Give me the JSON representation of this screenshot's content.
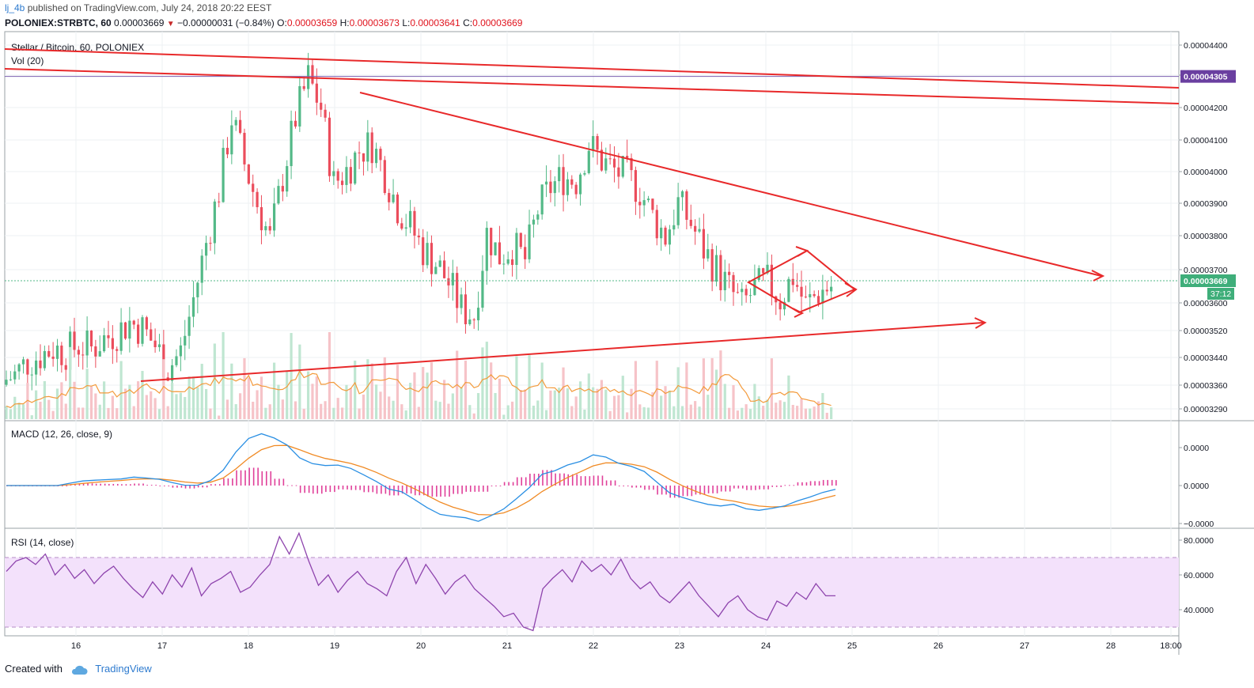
{
  "header": {
    "publisher": "lj_4b",
    "published_text": "published on TradingView.com, July 24, 2018 20:22 EEST",
    "symbol": "POLONIEX:STRBTC, 60",
    "last": "0.00003669",
    "change": "−0.00000031 (−0.84%)",
    "o_label": "O:",
    "o": "0.00003659",
    "h_label": "H:",
    "h": "0.00003673",
    "l_label": "L:",
    "l": "0.00003641",
    "c_label": "C:",
    "c": "0.00003669"
  },
  "footer": {
    "created_with": "Created with",
    "brand": "TradingView"
  },
  "chart_data": [
    {
      "type": "candlestick",
      "title": "Stellar / Bitcoin, 60, POLONIEX",
      "x_ticks": [
        "16",
        "17",
        "18",
        "19",
        "20",
        "21",
        "22",
        "23",
        "24",
        "25",
        "26",
        "27",
        "28",
        "18:00"
      ],
      "y_ticks": [
        "0.00004400",
        "0.00004300",
        "0.00004200",
        "0.00004100",
        "0.00004000",
        "0.00003900",
        "0.00003800",
        "0.00003700",
        "0.00003600",
        "0.00003520",
        "0.00003440",
        "0.00003360",
        "0.00003290"
      ],
      "ylim": [
        3.25e-05,
        4.45e-05
      ],
      "last_price_label": "0.00003669",
      "countdown_label": "37:12",
      "line_price_label": "0.00004305",
      "line_price": 4.305e-05,
      "close_series": [
        3.38e-05,
        3.4e-05,
        3.44e-05,
        3.46e-05,
        3.48e-05,
        3.47e-05,
        3.49e-05,
        3.48e-05,
        3.51e-05,
        3.53e-05,
        3.56e-05,
        3.54e-05,
        3.49e-05,
        3.42e-05,
        3.47e-05,
        3.63e-05,
        3.8e-05,
        3.96e-05,
        4.18e-05,
        4.04e-05,
        3.92e-05,
        3.81e-05,
        4e-05,
        4.18e-05,
        4.3e-05,
        4.21e-05,
        3.98e-05,
        4.02e-05,
        4.08e-05,
        4.1e-05,
        4.01e-05,
        3.91e-05,
        3.85e-05,
        3.78e-05,
        3.74e-05,
        3.68e-05,
        3.6e-05,
        3.58e-05,
        3.83e-05,
        3.76e-05,
        3.79e-05,
        3.75e-05,
        3.9e-05,
        3.97e-05,
        4e-05,
        3.99e-05,
        4.1e-05,
        4.05e-05,
        4.02e-05,
        4e-05,
        3.96e-05,
        3.88e-05,
        3.82e-05,
        3.92e-05,
        3.86e-05,
        3.78e-05,
        3.72e-05,
        3.66e-05,
        3.61e-05,
        3.66e-05,
        3.68e-05,
        3.63e-05,
        3.7e-05,
        3.61e-05,
        3.65e-05,
        3.67e-05
      ],
      "volume": {
        "label": "Vol (20)"
      }
    },
    {
      "type": "line",
      "title": "MACD (12, 26, close, 9)",
      "y_ticks": [
        "0.0000",
        "0.0000",
        "−0.0000"
      ]
    },
    {
      "type": "line",
      "title": "RSI (14, close)",
      "y_ticks": [
        "80.0000",
        "60.0000",
        "40.0000"
      ],
      "ylim": [
        25,
        85
      ],
      "band": [
        30,
        70
      ],
      "values": [
        62,
        68,
        70,
        66,
        72,
        60,
        66,
        58,
        63,
        55,
        61,
        65,
        58,
        52,
        47,
        56,
        49,
        60,
        53,
        64,
        48,
        55,
        58,
        62,
        50,
        53,
        60,
        66,
        82,
        72,
        84,
        68,
        54,
        60,
        50,
        57,
        62,
        55,
        52,
        48,
        62,
        70,
        55,
        66,
        58,
        49,
        56,
        60,
        52,
        47,
        42,
        36,
        38,
        30,
        28,
        52,
        58,
        63,
        56,
        68,
        62,
        66,
        60,
        69,
        58,
        52,
        56,
        48,
        44,
        50,
        56,
        48,
        42,
        36,
        44,
        48,
        40,
        36,
        34,
        45,
        42,
        50,
        46,
        55,
        48,
        48
      ]
    }
  ]
}
